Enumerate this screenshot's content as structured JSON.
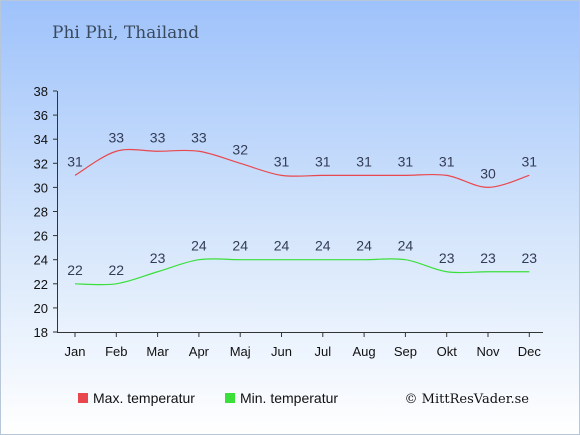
{
  "chart_data": {
    "type": "line",
    "title": "Phi Phi, Thailand",
    "categories": [
      "Jan",
      "Feb",
      "Mar",
      "Apr",
      "Maj",
      "Jun",
      "Jul",
      "Aug",
      "Sep",
      "Okt",
      "Nov",
      "Dec"
    ],
    "ylim": [
      18,
      38
    ],
    "yticks": [
      18,
      20,
      22,
      24,
      26,
      28,
      30,
      32,
      34,
      36,
      38
    ],
    "series": [
      {
        "name": "Max. temperatur",
        "color": "#e8484d",
        "values": [
          31,
          33,
          33,
          33,
          32,
          31,
          31,
          31,
          31,
          31,
          30,
          31
        ]
      },
      {
        "name": "Min. temperatur",
        "color": "#3adf3a",
        "values": [
          22,
          22,
          23,
          24,
          24,
          24,
          24,
          24,
          24,
          23,
          23,
          23
        ]
      }
    ],
    "legend_position": "bottom",
    "grid": false
  },
  "credit": "© MittResVader.se"
}
